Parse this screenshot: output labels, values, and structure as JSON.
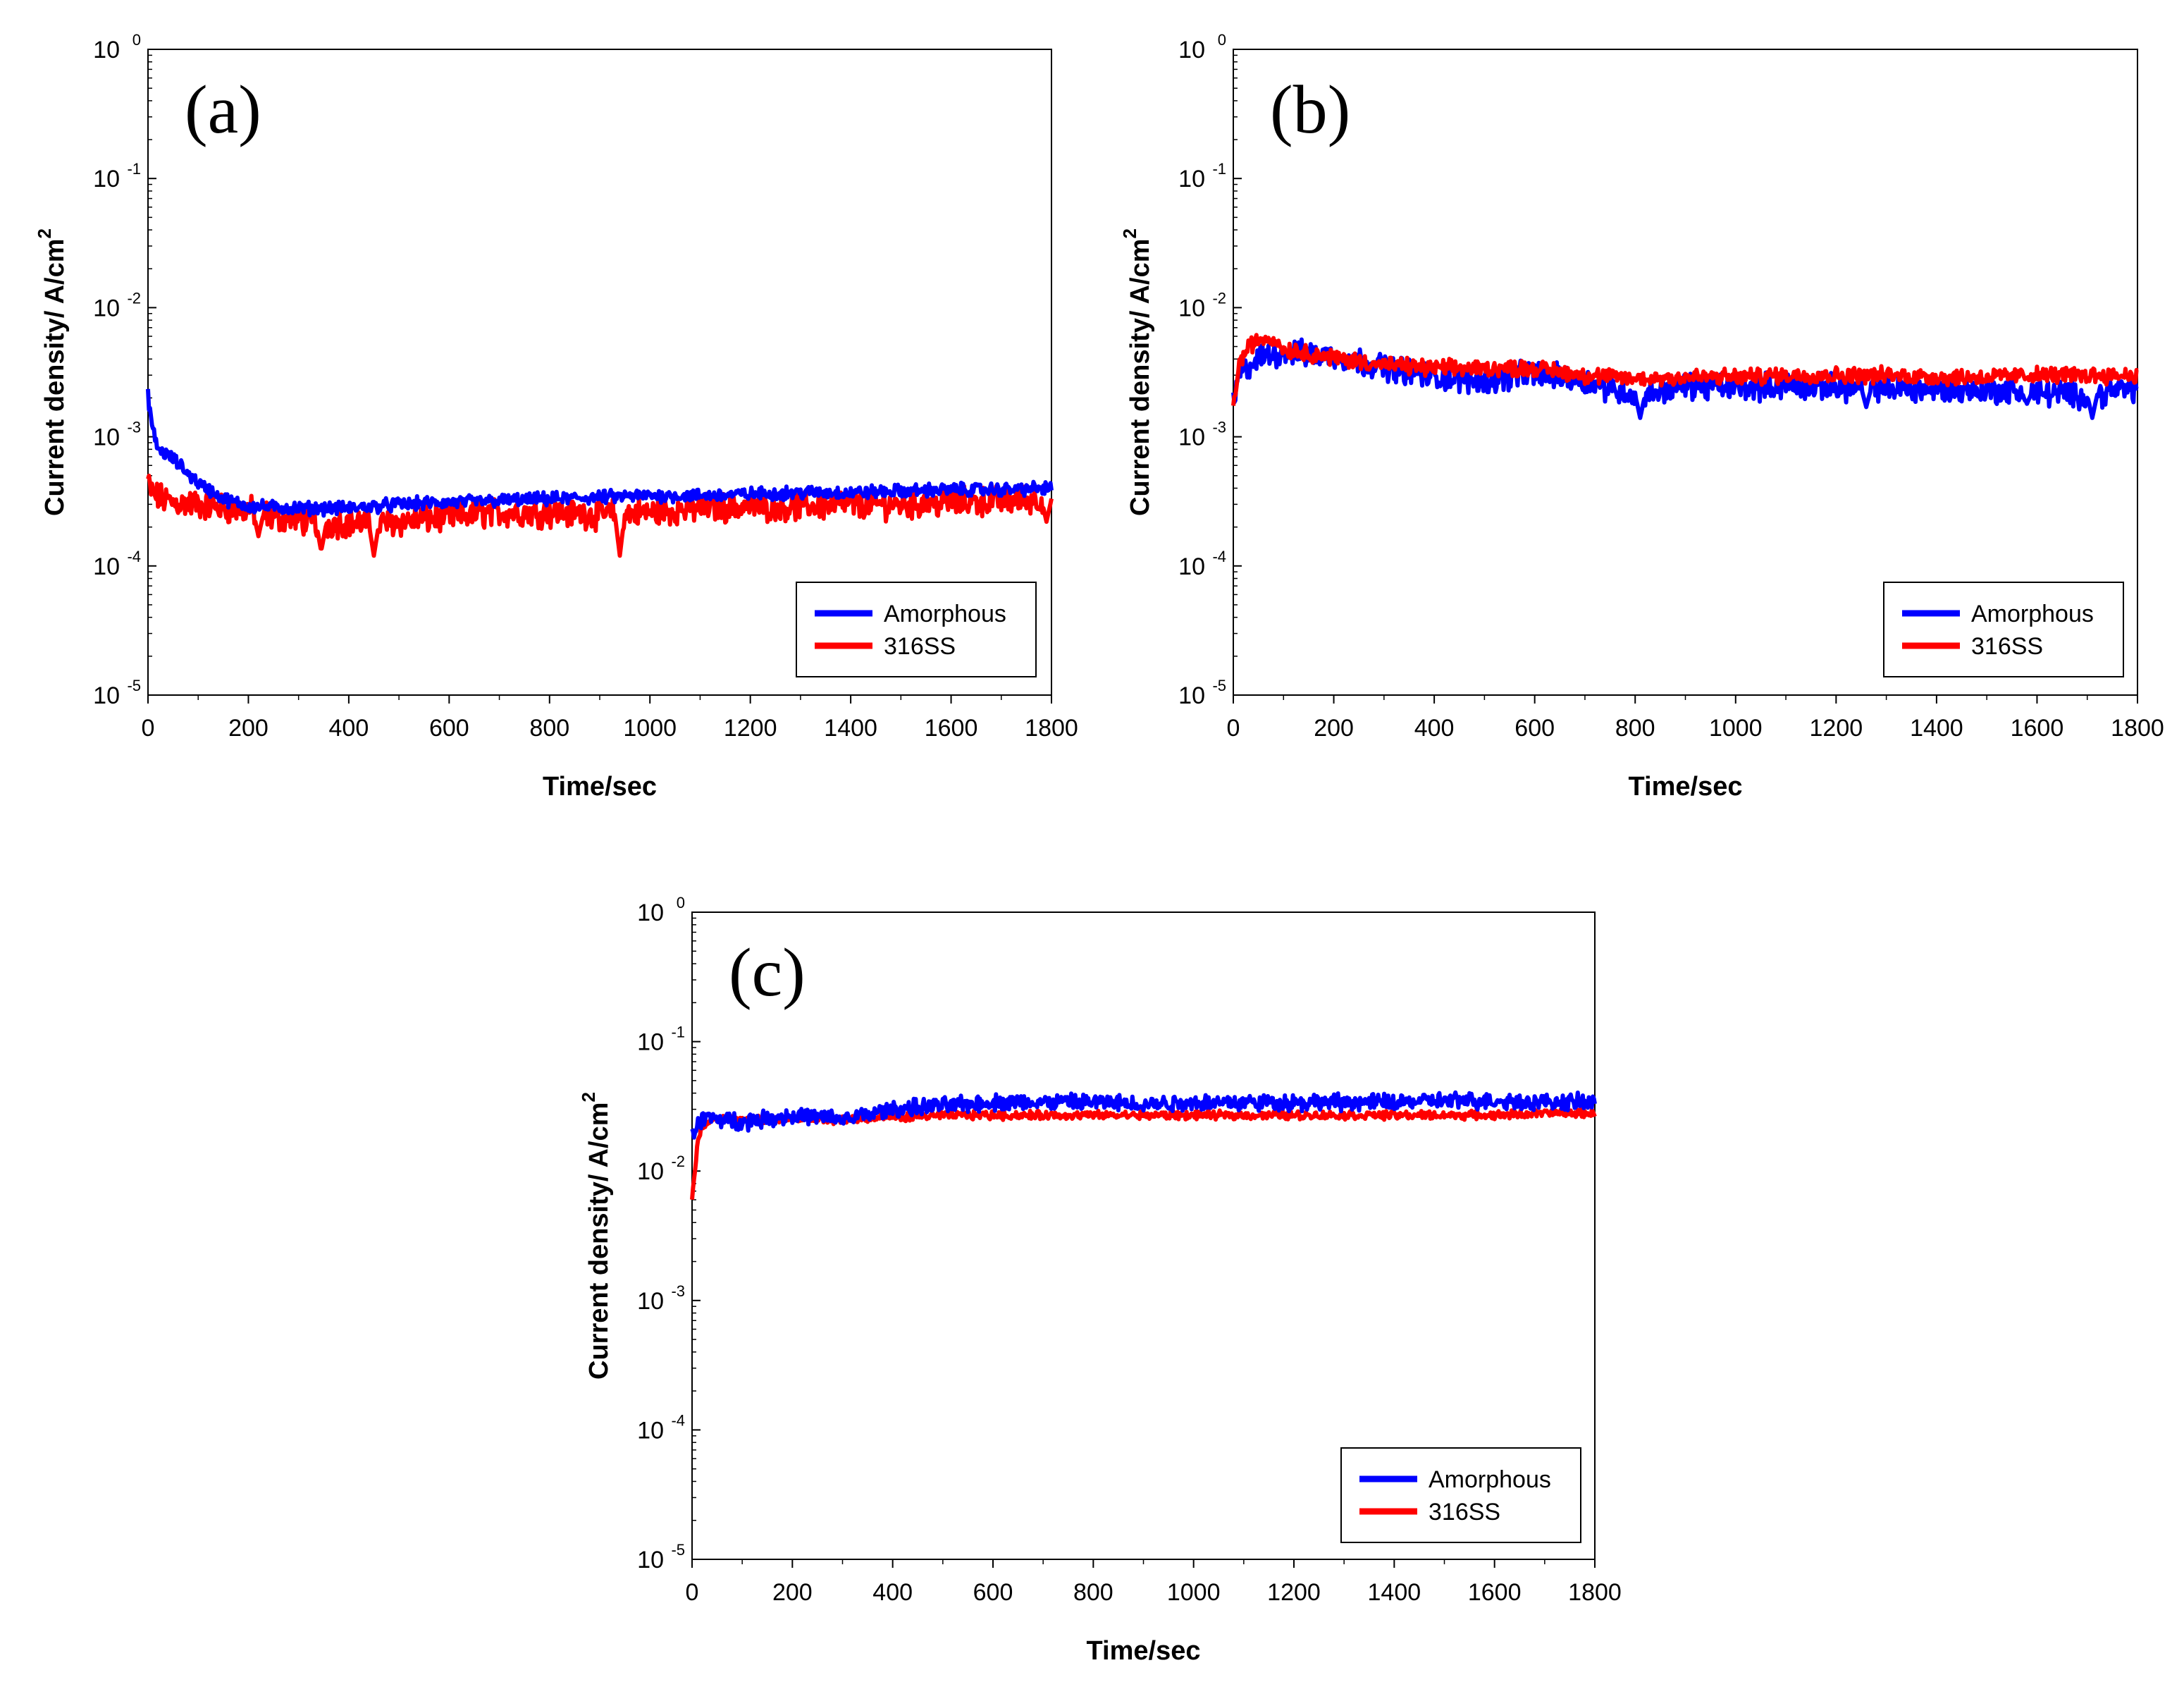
{
  "chart_data": [
    {
      "type": "line",
      "panel_label": "(a)",
      "xlabel": "Time/sec",
      "ylabel": "Current density/ A/cm",
      "ylabel_sup": "2",
      "yscale": "log",
      "xlim": [
        0,
        1800
      ],
      "ylim": [
        1e-05,
        1
      ],
      "xticks": [
        "0",
        "200",
        "400",
        "600",
        "800",
        "1000",
        "1200",
        "1400",
        "1600",
        "1800"
      ],
      "yticks": [
        {
          "base": "10",
          "exp": "0",
          "value": 1
        },
        {
          "base": "10",
          "exp": "-1",
          "value": 0.1
        },
        {
          "base": "10",
          "exp": "-2",
          "value": 0.01
        },
        {
          "base": "10",
          "exp": "-3",
          "value": 0.001
        },
        {
          "base": "10",
          "exp": "-4",
          "value": 0.0001
        },
        {
          "base": "10",
          "exp": "-5",
          "value": 1e-05
        }
      ],
      "legend": "bottom-right",
      "series": [
        {
          "name": "Amorphous",
          "color": "#0000ff",
          "x": [
            0,
            5,
            10,
            20,
            40,
            60,
            80,
            100,
            150,
            200,
            300,
            400,
            500,
            600,
            700,
            800,
            900,
            1000,
            1100,
            1200,
            1300,
            1400,
            1500,
            1600,
            1700,
            1800
          ],
          "values": [
            0.0021,
            0.0015,
            0.0011,
            0.0008,
            0.00072,
            0.00062,
            0.00052,
            0.00044,
            0.00033,
            0.00029,
            0.00028,
            0.00028,
            0.0003,
            0.00031,
            0.00032,
            0.00033,
            0.00034,
            0.00035,
            0.00035,
            0.00036,
            0.00037,
            0.00037,
            0.00038,
            0.00039,
            0.00039,
            0.0004
          ],
          "noise": 0.04
        },
        {
          "name": "316SS",
          "color": "#ff0000",
          "x": [
            0,
            5,
            20,
            50,
            100,
            150,
            200,
            250,
            300,
            350,
            400,
            450,
            500,
            600,
            700,
            800,
            900,
            1000,
            1100,
            1200,
            1300,
            1400,
            1500,
            1600,
            1700,
            1800
          ],
          "values": [
            0.00046,
            0.00038,
            0.00034,
            0.00031,
            0.0003,
            0.00028,
            0.00027,
            0.00024,
            0.00023,
            0.00021,
            0.00022,
            0.00021,
            0.00022,
            0.00024,
            0.00026,
            0.00026,
            0.00025,
            0.00026,
            0.00028,
            0.00029,
            0.00029,
            0.0003,
            0.0003,
            0.00031,
            0.00032,
            0.00033
          ],
          "noise": 0.09,
          "dips": [
            [
              220,
              0.00017
            ],
            [
              345,
              0.00013
            ],
            [
              450,
              0.00012
            ],
            [
              940,
              0.00012
            ],
            [
              1790,
              0.00022
            ]
          ]
        }
      ]
    },
    {
      "type": "line",
      "panel_label": "(b)",
      "xlabel": "Time/sec",
      "ylabel": "Current density/ A/cm",
      "ylabel_sup": "2",
      "yscale": "log",
      "xlim": [
        0,
        1800
      ],
      "ylim": [
        1e-05,
        1
      ],
      "xticks": [
        "0",
        "200",
        "400",
        "600",
        "800",
        "1000",
        "1200",
        "1400",
        "1600",
        "1800"
      ],
      "yticks": [
        {
          "base": "10",
          "exp": "0",
          "value": 1
        },
        {
          "base": "10",
          "exp": "-1",
          "value": 0.1
        },
        {
          "base": "10",
          "exp": "-2",
          "value": 0.01
        },
        {
          "base": "10",
          "exp": "-3",
          "value": 0.001
        },
        {
          "base": "10",
          "exp": "-4",
          "value": 0.0001
        },
        {
          "base": "10",
          "exp": "-5",
          "value": 1e-05
        }
      ],
      "legend": "bottom-right",
      "series": [
        {
          "name": "Amorphous",
          "color": "#0000ff",
          "x": [
            0,
            10,
            30,
            60,
            100,
            200,
            300,
            400,
            500,
            600,
            700,
            800,
            900,
            1000,
            1100,
            1200,
            1300,
            1400,
            1500,
            1600,
            1700,
            1800
          ],
          "values": [
            0.0018,
            0.0028,
            0.0035,
            0.0042,
            0.0045,
            0.0042,
            0.0035,
            0.0029,
            0.0027,
            0.0031,
            0.0027,
            0.0021,
            0.0025,
            0.0024,
            0.0025,
            0.0024,
            0.0024,
            0.0023,
            0.0023,
            0.0022,
            0.0021,
            0.0024
          ],
          "noise": 0.08,
          "dips": [
            [
              810,
              0.0014
            ],
            [
              1260,
              0.0017
            ],
            [
              1710,
              0.0014
            ],
            [
              1580,
              0.0018
            ]
          ]
        },
        {
          "name": "316SS",
          "color": "#ff0000",
          "x": [
            0,
            10,
            30,
            60,
            80,
            100,
            200,
            300,
            400,
            500,
            600,
            700,
            800,
            900,
            1000,
            1100,
            1200,
            1300,
            1400,
            1500,
            1600,
            1700,
            1800
          ],
          "values": [
            0.0016,
            0.0035,
            0.005,
            0.0058,
            0.0057,
            0.0048,
            0.0041,
            0.0036,
            0.0034,
            0.0034,
            0.0034,
            0.003,
            0.0028,
            0.0029,
            0.0029,
            0.003,
            0.003,
            0.003,
            0.0029,
            0.0029,
            0.003,
            0.003,
            0.003
          ],
          "noise": 0.05
        }
      ]
    },
    {
      "type": "line",
      "panel_label": "(c)",
      "xlabel": "Time/sec",
      "ylabel": "Current density/ A/cm",
      "ylabel_sup": "2",
      "yscale": "log",
      "xlim": [
        0,
        1800
      ],
      "ylim": [
        1e-05,
        1
      ],
      "xticks": [
        "0",
        "200",
        "400",
        "600",
        "800",
        "1000",
        "1200",
        "1400",
        "1600",
        "1800"
      ],
      "yticks": [
        {
          "base": "10",
          "exp": "0",
          "value": 1
        },
        {
          "base": "10",
          "exp": "-1",
          "value": 0.1
        },
        {
          "base": "10",
          "exp": "-2",
          "value": 0.01
        },
        {
          "base": "10",
          "exp": "-3",
          "value": 0.001
        },
        {
          "base": "10",
          "exp": "-4",
          "value": 0.0001
        },
        {
          "base": "10",
          "exp": "-5",
          "value": 1e-05
        }
      ],
      "legend": "bottom-right",
      "series": [
        {
          "name": "Amorphous",
          "color": "#0000ff",
          "x": [
            0,
            10,
            30,
            60,
            100,
            200,
            300,
            400,
            500,
            600,
            700,
            800,
            900,
            1000,
            1100,
            1200,
            1300,
            1400,
            1500,
            1600,
            1700,
            1800
          ],
          "values": [
            0.019,
            0.023,
            0.026,
            0.025,
            0.024,
            0.027,
            0.025,
            0.03,
            0.032,
            0.034,
            0.034,
            0.034,
            0.033,
            0.034,
            0.034,
            0.034,
            0.034,
            0.034,
            0.035,
            0.035,
            0.034,
            0.034
          ],
          "noise": 0.05
        },
        {
          "name": "316SS",
          "color": "#ff0000",
          "x": [
            0,
            5,
            10,
            20,
            40,
            80,
            150,
            300,
            400,
            500,
            600,
            700,
            800,
            900,
            1000,
            1100,
            1200,
            1300,
            1400,
            1500,
            1600,
            1700,
            1800
          ],
          "values": [
            0.006,
            0.009,
            0.016,
            0.022,
            0.025,
            0.025,
            0.025,
            0.025,
            0.026,
            0.027,
            0.027,
            0.027,
            0.027,
            0.027,
            0.027,
            0.027,
            0.027,
            0.027,
            0.027,
            0.027,
            0.027,
            0.028,
            0.028
          ],
          "noise": 0.025
        }
      ]
    }
  ]
}
